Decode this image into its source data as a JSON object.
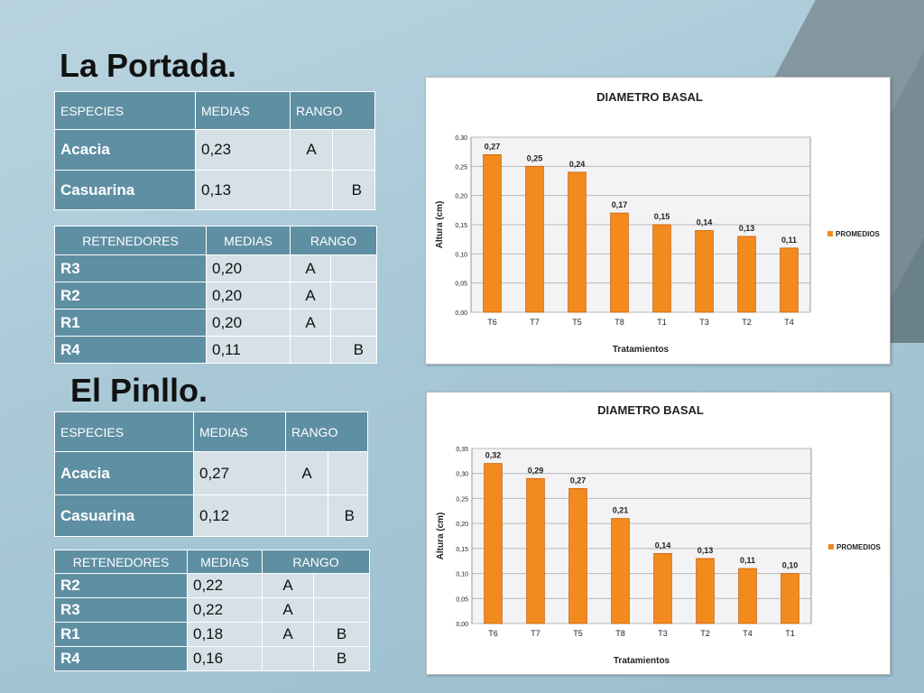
{
  "section1": {
    "title": "La Portada.",
    "species_table": {
      "headers": [
        "ESPECIES",
        "MEDIAS",
        "RANGO"
      ],
      "rows": [
        {
          "label": "Acacia",
          "mean": "0,23",
          "rank_a": "A",
          "rank_b": ""
        },
        {
          "label": "Casuarina",
          "mean": "0,13",
          "rank_a": "",
          "rank_b": "B"
        }
      ]
    },
    "retainers_table": {
      "headers": [
        "RETENEDORES",
        "MEDIAS",
        "RANGO"
      ],
      "rows": [
        {
          "label": "R3",
          "mean": "0,20",
          "rank_a": "A",
          "rank_b": ""
        },
        {
          "label": "R2",
          "mean": "0,20",
          "rank_a": "A",
          "rank_b": ""
        },
        {
          "label": "R1",
          "mean": "0,20",
          "rank_a": "A",
          "rank_b": ""
        },
        {
          "label": "R4",
          "mean": "0,11",
          "rank_a": "",
          "rank_b": "B"
        }
      ]
    }
  },
  "section2": {
    "title": "El Pinllo.",
    "species_table": {
      "headers": [
        "ESPECIES",
        "MEDIAS",
        "RANGO"
      ],
      "rows": [
        {
          "label": "Acacia",
          "mean": "0,27",
          "rank_a": "A",
          "rank_b": ""
        },
        {
          "label": "Casuarina",
          "mean": "0,12",
          "rank_a": "",
          "rank_b": "B"
        }
      ]
    },
    "retainers_table": {
      "headers": [
        "RETENEDORES",
        "MEDIAS",
        "RANGO"
      ],
      "rows": [
        {
          "label": "R2",
          "mean": "0,22",
          "rank_a": "A",
          "rank_b": ""
        },
        {
          "label": "R3",
          "mean": "0,22",
          "rank_a": "A",
          "rank_b": ""
        },
        {
          "label": "R1",
          "mean": "0,18",
          "rank_a": "A",
          "rank_b": "B"
        },
        {
          "label": "R4",
          "mean": "0,16",
          "rank_a": "",
          "rank_b": "B"
        }
      ]
    }
  },
  "colors": {
    "bar": "#f28a1e",
    "bar_dark": "#c9640a",
    "header": "#5f8fa3",
    "cell": "#d6e1e7"
  },
  "chart_data": [
    {
      "type": "bar",
      "title": "DIAMETRO BASAL",
      "xlabel": "Tratamientos",
      "ylabel": "Altura (cm)",
      "categories": [
        "T6",
        "T7",
        "T5",
        "T8",
        "T1",
        "T3",
        "T2",
        "T4"
      ],
      "series": [
        {
          "name": "PROMEDIOS",
          "values": [
            0.27,
            0.25,
            0.24,
            0.17,
            0.15,
            0.14,
            0.13,
            0.11
          ]
        }
      ],
      "value_labels": [
        "0,27",
        "0,25",
        "0,24",
        "0,17",
        "0,15",
        "0,14",
        "0,13",
        "0,11"
      ],
      "ylim": [
        0,
        0.3
      ],
      "yticks": [
        "0,00",
        "0,05",
        "0,10",
        "0,15",
        "0,20",
        "0,25",
        "0,30"
      ],
      "legend": "right",
      "grid": true
    },
    {
      "type": "bar",
      "title": "DIAMETRO BASAL",
      "xlabel": "Tratamientos",
      "ylabel": "Altura (cm)",
      "categories": [
        "T6",
        "T7",
        "T5",
        "T8",
        "T3",
        "T2",
        "T4",
        "T1"
      ],
      "series": [
        {
          "name": "PROMEDIOS",
          "values": [
            0.32,
            0.29,
            0.27,
            0.21,
            0.14,
            0.13,
            0.11,
            0.1
          ]
        }
      ],
      "value_labels": [
        "0,32",
        "0,29",
        "0,27",
        "0,21",
        "0,14",
        "0,13",
        "0,11",
        "0,10"
      ],
      "ylim": [
        0,
        0.35
      ],
      "yticks": [
        "0,00",
        "0,05",
        "0,10",
        "0,15",
        "0,20",
        "0,25",
        "0,30",
        "0,35"
      ],
      "legend": "right",
      "grid": true
    }
  ]
}
